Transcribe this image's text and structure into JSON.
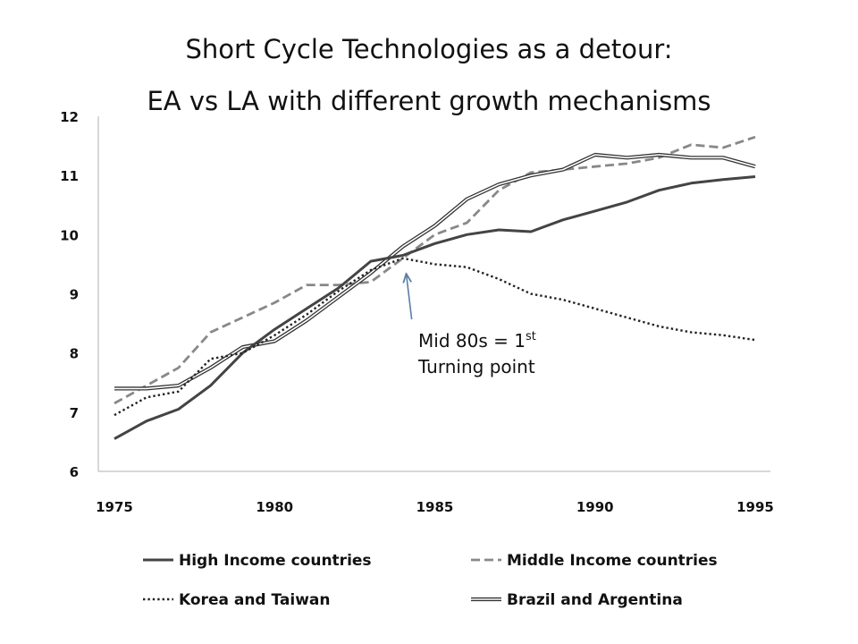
{
  "chart_data": {
    "type": "line",
    "title": "Short Cycle Technologies as a detour:",
    "subtitle": "EA  vs LA with different growth mechanisms",
    "xlabel": "",
    "ylabel": "",
    "xlim": [
      1975,
      1995
    ],
    "ylim": [
      6,
      12
    ],
    "x_ticks": [
      "1975",
      "1980",
      "1985",
      "1990",
      "1995"
    ],
    "y_ticks": [
      "6",
      "7",
      "8",
      "9",
      "10",
      "11",
      "12"
    ],
    "grid": false,
    "legend_position": "bottom",
    "x": [
      1975,
      1976,
      1977,
      1978,
      1979,
      1980,
      1981,
      1982,
      1983,
      1984,
      1985,
      1986,
      1987,
      1988,
      1989,
      1990,
      1991,
      1992,
      1993,
      1994,
      1995
    ],
    "series": [
      {
        "name": "High Income countries",
        "style": "solid",
        "color": "#444444",
        "values": [
          6.55,
          6.85,
          7.05,
          7.45,
          8.0,
          8.4,
          8.75,
          9.1,
          9.55,
          9.65,
          9.85,
          10.0,
          10.08,
          10.05,
          10.25,
          10.4,
          10.55,
          10.75,
          10.87,
          10.93,
          10.98
        ]
      },
      {
        "name": "Middle Income countries",
        "style": "dashed",
        "color": "#888888",
        "values": [
          7.15,
          7.45,
          7.75,
          8.35,
          8.6,
          8.85,
          9.15,
          9.15,
          9.2,
          9.6,
          10.0,
          10.2,
          10.75,
          11.05,
          11.1,
          11.15,
          11.2,
          11.3,
          11.52,
          11.47,
          11.65
        ]
      },
      {
        "name": "Korea and Taiwan",
        "style": "dotted",
        "color": "#222222",
        "values": [
          6.95,
          7.25,
          7.35,
          7.9,
          8.0,
          8.3,
          8.65,
          9.05,
          9.4,
          9.6,
          9.5,
          9.45,
          9.25,
          9.0,
          8.9,
          8.75,
          8.6,
          8.45,
          8.35,
          8.3,
          8.22
        ]
      },
      {
        "name": "Brazil and Argentina",
        "style": "double",
        "color": "#333333",
        "values": [
          7.4,
          7.4,
          7.45,
          7.75,
          8.1,
          8.2,
          8.55,
          8.95,
          9.35,
          9.8,
          10.15,
          10.6,
          10.85,
          11.0,
          11.1,
          11.35,
          11.3,
          11.35,
          11.3,
          11.3,
          11.15
        ]
      }
    ],
    "annotation": {
      "line1": "Mid 80s  =  1",
      "sup": "st",
      "line2": "Turning point",
      "x": 1984,
      "y": 9.35,
      "arrow_color": "#5b7fa6"
    }
  }
}
